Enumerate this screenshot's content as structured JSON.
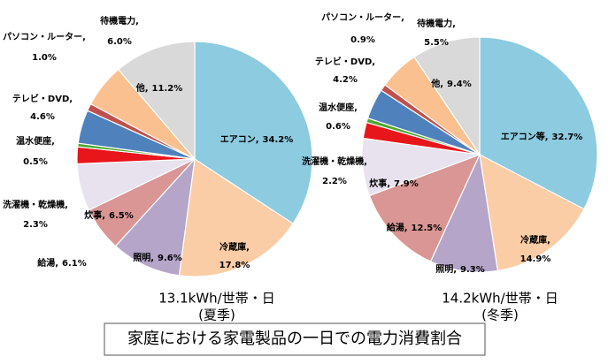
{
  "title": "家庭における家電製品の一日での電力消費割合",
  "chart_data": [
    {
      "type": "pie",
      "subtitle": "13.1kWh/世帯・日",
      "caption": "(夏季)",
      "categories": [
        "エアコン,",
        "冷蔵庫,",
        "照明,",
        "給湯,",
        "炊事,",
        "洗濯機・乾燥機,",
        "温水便座,",
        "テレビ・DVD,",
        "パソコン・ルーター,",
        "待機電力,",
        "他,"
      ],
      "values": [
        34.2,
        17.8,
        9.6,
        6.1,
        6.5,
        2.3,
        0.5,
        4.6,
        1.0,
        6.0,
        11.2
      ],
      "value_labels": [
        "34.2%",
        "17.8%",
        "9.6%",
        "6.1%",
        "6.5%",
        "2.3%",
        "0.5%",
        "4.6%",
        "1.0%",
        "6.0%",
        "11.2%"
      ],
      "colors": [
        "#8ccbe0",
        "#fbcda6",
        "#b4a5c9",
        "#d99694",
        "#e7e2ee",
        "#e8161b",
        "#4ea72e",
        "#4f81bd",
        "#c0504d",
        "#fac090",
        "#d9d9d9"
      ]
    },
    {
      "type": "pie",
      "subtitle": "14.2kWh/世帯・日",
      "caption": "(冬季)",
      "categories": [
        "エアコン等,",
        "冷蔵庫,",
        "照明,",
        "給湯,",
        "炊事,",
        "洗濯機・乾燥機,",
        "温水便座,",
        "テレビ・DVD,",
        "パソコン・ルーター,",
        "待機電力,",
        "他,"
      ],
      "values": [
        32.7,
        14.9,
        9.3,
        12.5,
        7.9,
        2.2,
        0.6,
        4.2,
        0.9,
        5.5,
        9.4
      ],
      "value_labels": [
        "32.7%",
        "14.9%",
        "9.3%",
        "12.5%",
        "7.9%",
        "2.2%",
        "0.6%",
        "4.2%",
        "0.9%",
        "5.5%",
        "9.4%"
      ],
      "colors": [
        "#8ccbe0",
        "#fbcda6",
        "#b4a5c9",
        "#d99694",
        "#e7e2ee",
        "#e8161b",
        "#4ea72e",
        "#4f81bd",
        "#c0504d",
        "#fac090",
        "#d9d9d9"
      ]
    }
  ]
}
